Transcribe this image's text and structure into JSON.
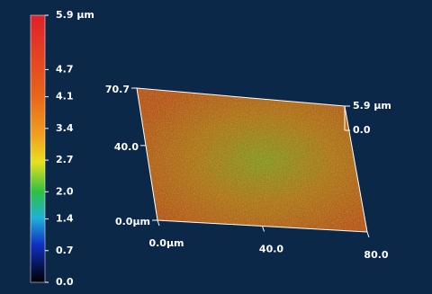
{
  "chart_data": {
    "type": "surface",
    "colorbar": {
      "lim": [
        0,
        5.9
      ],
      "ticks": [
        {
          "value": 5.9,
          "label": "5.9 µm"
        },
        4.7,
        4.1,
        3.4,
        2.7,
        {
          "value": 2,
          "label": "2.0"
        },
        1.4,
        0.7,
        {
          "value": 0,
          "label": "0.0"
        }
      ]
    },
    "xlim": [
      0,
      80
    ],
    "xticks": [
      {
        "value": 0,
        "label": "0.0µm"
      },
      {
        "value": 40,
        "label": "40.0"
      },
      {
        "value": 80,
        "label": "80.0"
      }
    ],
    "ylim": [
      0,
      70.7
    ],
    "yticks": [
      {
        "value": 0,
        "label": "0.0µm"
      },
      {
        "value": 40,
        "label": "40.0"
      },
      {
        "value": 70.7,
        "label": "70.7"
      }
    ],
    "zlim": [
      0,
      5.9
    ],
    "zticks": [
      {
        "value": 0,
        "label": "0.0"
      },
      {
        "value": 5.9,
        "label": "5.9 µm"
      }
    ]
  }
}
